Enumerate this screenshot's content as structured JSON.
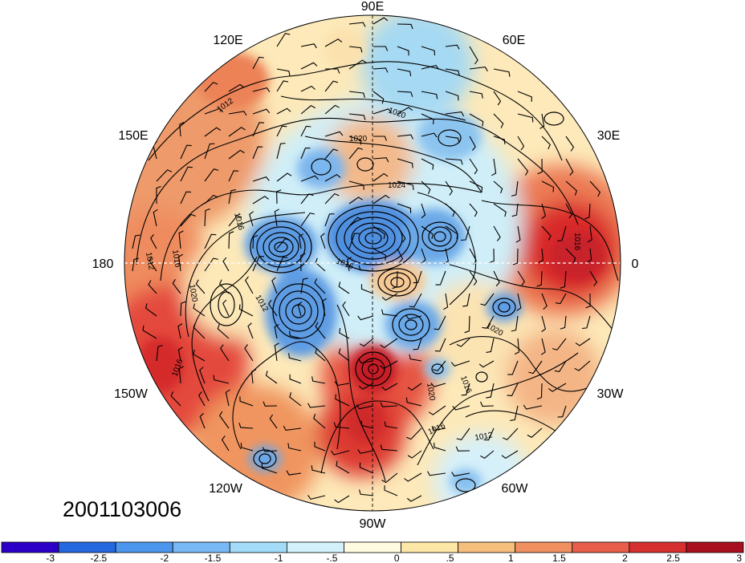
{
  "map": {
    "date_stamp": "2001103006",
    "longitude_labels": {
      "lon_90e": "90E",
      "lon_60e": "60E",
      "lon_120e": "120E",
      "lon_30e": "30E",
      "lon_150e": "150E",
      "lon_0": "0",
      "lon_180": "180",
      "lon_30w": "30W",
      "lon_150w": "150W",
      "lon_60w": "60W",
      "lon_120w": "120W",
      "lon_90w": "90W"
    },
    "contour_labels": {
      "c1012a": "1012",
      "c1020a": "1020",
      "c1020b": "1020",
      "c1024": "1024",
      "c1016a": "1016",
      "c1012b": "1012",
      "c1016b": "1016",
      "c1020c": "1020",
      "c1016c": "1016",
      "c1012c": "1012",
      "c1020d": "1020",
      "c1016d": "1016",
      "c1016e": "1016",
      "c1012d": "1012",
      "c1020e": "1020",
      "c1016f": "1016"
    },
    "colors": {
      "very_negative": "#1e1ec8",
      "negative": "#4f8fe0",
      "slightly_negative": "#cdeff7",
      "slightly_positive": "#fbe9b8",
      "positive": "#ee9060",
      "very_positive": "#dd2b2b"
    }
  },
  "colorbar": {
    "tick_labels": [
      "-3",
      "-2.5",
      "-2",
      "-1.5",
      "-1",
      "-.5",
      "0",
      ".5",
      "1",
      "1.5",
      "2",
      "2.5",
      "3"
    ],
    "colors": [
      "#2d00c8",
      "#2468e0",
      "#4c96ee",
      "#78b8f4",
      "#a3dcf8",
      "#d2f1fa",
      "#fffbe0",
      "#fde7a6",
      "#f7bf7c",
      "#f09060",
      "#e85e4a",
      "#d62f2f",
      "#a80f1f"
    ]
  }
}
